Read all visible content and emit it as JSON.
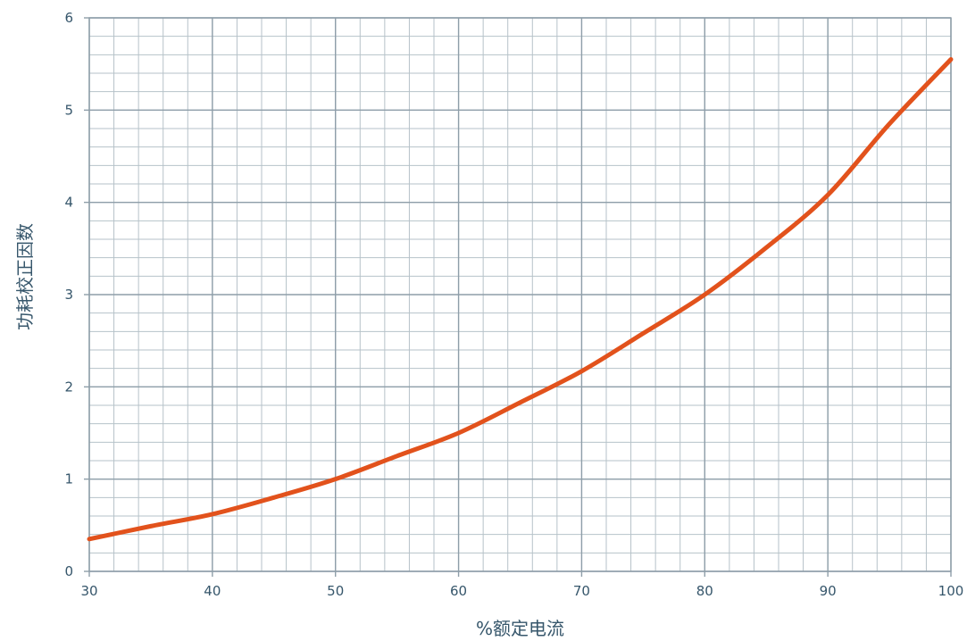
{
  "chart_data": {
    "type": "line",
    "title": "",
    "xlabel": "%额定电流",
    "ylabel": "功耗校正因数",
    "xlim": [
      30,
      100
    ],
    "ylim": [
      0,
      6
    ],
    "x_ticks": [
      30,
      40,
      50,
      60,
      70,
      80,
      90,
      100
    ],
    "y_ticks": [
      0,
      1,
      2,
      3,
      4,
      5,
      6
    ],
    "x_minor_step": 2,
    "y_minor_step": 0.2,
    "grid": true,
    "colors": {
      "line": "#e2521c",
      "major_grid": "#8e9ea9",
      "minor_grid": "#b6c2c9",
      "axis_text": "#36566b"
    },
    "series": [
      {
        "x": [
          30,
          35,
          40,
          45,
          50,
          55,
          60,
          65,
          70,
          75,
          80,
          85,
          90,
          95,
          100
        ],
        "values": [
          0.35,
          0.49,
          0.62,
          0.8,
          1.0,
          1.25,
          1.5,
          1.83,
          2.17,
          2.58,
          3.0,
          3.51,
          4.08,
          4.85,
          5.55
        ]
      }
    ]
  }
}
